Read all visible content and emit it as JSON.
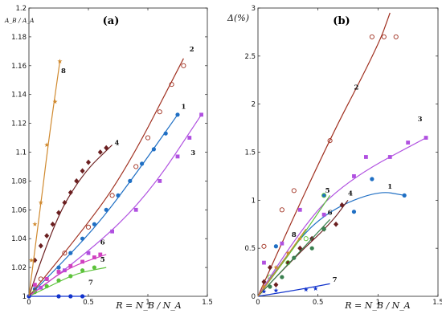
{
  "chart_data": [
    {
      "type": "line",
      "panel": "(a)",
      "ylabel": "A_B / A_A",
      "xlabel": "R = N_B / N_A",
      "xlim": [
        0,
        1.5
      ],
      "ylim": [
        1.0,
        1.2
      ],
      "x_ticks": [
        0,
        0.5,
        1,
        1.5
      ],
      "x_tick_labels": [
        "0",
        "0.5",
        "1",
        "1.5"
      ],
      "y_ticks": [
        1.0,
        1.02,
        1.04,
        1.06,
        1.08,
        1.1,
        1.12,
        1.14,
        1.16,
        1.18,
        1.2
      ],
      "y_tick_labels": [
        "1",
        "1.02",
        "1.04",
        "1.06",
        "1.08",
        "1.1",
        "1.12",
        "1.14",
        "1.16",
        "1.18",
        "1.2"
      ],
      "series": [
        {
          "name": "1",
          "color": "#1f6fc4",
          "marker": "dot",
          "points": [
            [
              0.05,
              1.005
            ],
            [
              0.15,
              1.012
            ],
            [
              0.25,
              1.02
            ],
            [
              0.35,
              1.03
            ],
            [
              0.45,
              1.04
            ],
            [
              0.55,
              1.05
            ],
            [
              0.65,
              1.06
            ],
            [
              0.75,
              1.07
            ],
            [
              0.85,
              1.08
            ],
            [
              0.95,
              1.092
            ],
            [
              1.05,
              1.102
            ],
            [
              1.15,
              1.113
            ],
            [
              1.25,
              1.126
            ]
          ],
          "curve": [
            [
              0,
              1.0
            ],
            [
              0.3,
              1.025
            ],
            [
              0.6,
              1.052
            ],
            [
              0.9,
              1.085
            ],
            [
              1.25,
              1.126
            ]
          ],
          "label_at": [
            1.28,
            1.13
          ]
        },
        {
          "name": "2",
          "color": "#a03020",
          "marker": "circle-open",
          "points": [
            [
              0.1,
              1.012
            ],
            [
              0.3,
              1.03
            ],
            [
              0.5,
              1.048
            ],
            [
              0.7,
              1.07
            ],
            [
              0.9,
              1.09
            ],
            [
              1.0,
              1.11
            ],
            [
              1.1,
              1.128
            ],
            [
              1.2,
              1.147
            ],
            [
              1.3,
              1.16
            ]
          ],
          "curve": [
            [
              0,
              1.0
            ],
            [
              0.4,
              1.04
            ],
            [
              0.8,
              1.085
            ],
            [
              1.3,
              1.165
            ]
          ],
          "label_at": [
            1.35,
            1.17
          ]
        },
        {
          "name": "3",
          "color": "#b050e0",
          "marker": "square",
          "points": [
            [
              0.1,
              1.006
            ],
            [
              0.3,
              1.018
            ],
            [
              0.5,
              1.03
            ],
            [
              0.7,
              1.045
            ],
            [
              0.9,
              1.06
            ],
            [
              1.1,
              1.08
            ],
            [
              1.25,
              1.097
            ],
            [
              1.35,
              1.11
            ],
            [
              1.45,
              1.126
            ]
          ],
          "curve": [
            [
              0,
              1.0
            ],
            [
              0.5,
              1.03
            ],
            [
              1.0,
              1.07
            ],
            [
              1.45,
              1.126
            ]
          ],
          "label_at": [
            1.36,
            1.098
          ]
        },
        {
          "name": "4",
          "color": "#6b1f20",
          "marker": "diamond",
          "points": [
            [
              0.05,
              1.025
            ],
            [
              0.1,
              1.035
            ],
            [
              0.15,
              1.042
            ],
            [
              0.2,
              1.05
            ],
            [
              0.25,
              1.058
            ],
            [
              0.3,
              1.065
            ],
            [
              0.35,
              1.072
            ],
            [
              0.4,
              1.08
            ],
            [
              0.45,
              1.087
            ],
            [
              0.5,
              1.093
            ],
            [
              0.6,
              1.1
            ],
            [
              0.65,
              1.103
            ]
          ],
          "curve": [
            [
              0,
              1.0
            ],
            [
              0.2,
              1.05
            ],
            [
              0.45,
              1.085
            ],
            [
              0.7,
              1.105
            ]
          ],
          "label_at": [
            0.72,
            1.105
          ]
        },
        {
          "name": "5",
          "color": "#5cc23a",
          "marker": "dot",
          "points": [
            [
              0.05,
              1.003
            ],
            [
              0.15,
              1.007
            ],
            [
              0.25,
              1.011
            ],
            [
              0.35,
              1.014
            ],
            [
              0.45,
              1.018
            ],
            [
              0.55,
              1.02
            ]
          ],
          "curve": [
            [
              0,
              1.0
            ],
            [
              0.2,
              1.008
            ],
            [
              0.4,
              1.016
            ],
            [
              0.65,
              1.02
            ]
          ],
          "label_at": [
            0.6,
            1.024
          ]
        },
        {
          "name": "6",
          "color": "#d040c0",
          "marker": "square",
          "points": [
            [
              0.05,
              1.008
            ],
            [
              0.15,
              1.012
            ],
            [
              0.25,
              1.017
            ],
            [
              0.35,
              1.021
            ],
            [
              0.45,
              1.024
            ],
            [
              0.55,
              1.027
            ],
            [
              0.6,
              1.029
            ]
          ],
          "curve": [
            [
              0,
              1.0
            ],
            [
              0.2,
              1.013
            ],
            [
              0.4,
              1.022
            ],
            [
              0.65,
              1.029
            ]
          ],
          "label_at": [
            0.6,
            1.036
          ]
        },
        {
          "name": "7",
          "color": "#1133cc",
          "marker": "dot",
          "points": [
            [
              0.0,
              1.0
            ],
            [
              0.25,
              1.0
            ],
            [
              0.35,
              1.0
            ],
            [
              0.45,
              1.0
            ]
          ],
          "curve": [
            [
              0,
              1.0
            ],
            [
              0.48,
              1.0
            ]
          ],
          "label_at": [
            0.5,
            1.008
          ]
        },
        {
          "name": "8",
          "color": "#d08a30",
          "marker": "star",
          "points": [
            [
              0.02,
              1.025
            ],
            [
              0.05,
              1.05
            ],
            [
              0.1,
              1.065
            ],
            [
              0.15,
              1.105
            ],
            [
              0.22,
              1.135
            ],
            [
              0.26,
              1.163
            ]
          ],
          "curve": [
            [
              0,
              1.0
            ],
            [
              0.08,
              1.05
            ],
            [
              0.16,
              1.105
            ],
            [
              0.26,
              1.163
            ]
          ],
          "label_at": [
            0.27,
            1.155
          ]
        }
      ]
    },
    {
      "type": "line",
      "panel": "(b)",
      "ylabel": "Δ(%)",
      "xlabel": "R = N_B / N_A",
      "xlim": [
        0,
        1.5
      ],
      "ylim": [
        0,
        3
      ],
      "x_ticks": [
        0,
        0.5,
        1,
        1.5
      ],
      "x_tick_labels": [
        "0",
        "0.5",
        "1",
        "1.5"
      ],
      "y_ticks": [
        0,
        0.5,
        1,
        1.5,
        2,
        2.5,
        3
      ],
      "y_tick_labels": [
        "0",
        "0.5",
        "1",
        "1.5",
        "2",
        "2.5",
        "3"
      ],
      "series": [
        {
          "name": "1",
          "color": "#1f6fc4",
          "marker": "dot",
          "points": [
            [
              0.15,
              0.52
            ],
            [
              0.45,
              0.6
            ],
            [
              0.55,
              1.05
            ],
            [
              0.8,
              0.88
            ],
            [
              0.95,
              1.22
            ],
            [
              1.22,
              1.05
            ]
          ],
          "curve": [
            [
              0,
              0
            ],
            [
              0.3,
              0.55
            ],
            [
              0.6,
              0.9
            ],
            [
              1.0,
              1.1
            ],
            [
              1.22,
              1.05
            ]
          ],
          "label_at": [
            1.08,
            1.12
          ]
        },
        {
          "name": "2",
          "color": "#a03020",
          "marker": "circle-open",
          "points": [
            [
              0.05,
              0.52
            ],
            [
              0.2,
              0.9
            ],
            [
              0.3,
              1.1
            ],
            [
              0.6,
              1.62
            ],
            [
              0.95,
              2.7
            ],
            [
              1.05,
              2.7
            ],
            [
              1.15,
              2.7
            ]
          ],
          "curve": [
            [
              0,
              0
            ],
            [
              0.5,
              1.4
            ],
            [
              1.0,
              2.6
            ],
            [
              1.1,
              2.95
            ]
          ],
          "label_at": [
            0.8,
            2.15
          ]
        },
        {
          "name": "3",
          "color": "#b050e0",
          "marker": "square",
          "points": [
            [
              0.05,
              0.35
            ],
            [
              0.2,
              0.55
            ],
            [
              0.35,
              0.9
            ],
            [
              0.55,
              0.85
            ],
            [
              0.8,
              1.25
            ],
            [
              0.9,
              1.45
            ],
            [
              1.1,
              1.45
            ],
            [
              1.25,
              1.6
            ],
            [
              1.4,
              1.65
            ]
          ],
          "curve": [
            [
              0,
              0
            ],
            [
              0.4,
              0.8
            ],
            [
              0.8,
              1.25
            ],
            [
              1.4,
              1.65
            ]
          ],
          "label_at": [
            1.33,
            1.82
          ]
        },
        {
          "name": "4",
          "color": "#6b1f20",
          "marker": "diamond",
          "points": [
            [
              0.05,
              0.15
            ],
            [
              0.1,
              0.3
            ],
            [
              0.15,
              0.12
            ],
            [
              0.25,
              0.35
            ],
            [
              0.35,
              0.5
            ],
            [
              0.45,
              0.6
            ],
            [
              0.55,
              0.7
            ],
            [
              0.65,
              0.75
            ],
            [
              0.7,
              0.95
            ]
          ],
          "curve": [
            [
              0,
              0
            ],
            [
              0.3,
              0.4
            ],
            [
              0.6,
              0.75
            ],
            [
              0.75,
              1.0
            ]
          ],
          "label_at": [
            0.75,
            1.05
          ]
        },
        {
          "name": "5",
          "color": "#5cc23a",
          "marker": "circle-open",
          "points": [
            [
              0.1,
              0.2
            ],
            [
              0.25,
              0.35
            ],
            [
              0.4,
              0.6
            ],
            [
              0.55,
              1.05
            ]
          ],
          "curve": [
            [
              0,
              0
            ],
            [
              0.3,
              0.5
            ],
            [
              0.6,
              1.05
            ]
          ],
          "label_at": [
            0.56,
            1.08
          ]
        },
        {
          "name": "6",
          "color": "#3a8050",
          "marker": "dot",
          "points": [
            [
              0.1,
              0.1
            ],
            [
              0.2,
              0.2
            ],
            [
              0.3,
              0.4
            ],
            [
              0.45,
              0.5
            ],
            [
              0.55,
              0.7
            ]
          ],
          "curve": [
            [
              0,
              0
            ],
            [
              0.3,
              0.4
            ],
            [
              0.6,
              0.8
            ]
          ],
          "label_at": [
            0.58,
            0.85
          ]
        },
        {
          "name": "7",
          "color": "#1133cc",
          "marker": "star",
          "points": [
            [
              0.05,
              0.05
            ],
            [
              0.15,
              0.06
            ],
            [
              0.4,
              0.07
            ],
            [
              0.48,
              0.08
            ]
          ],
          "curve": [
            [
              0,
              0
            ],
            [
              0.3,
              0.06
            ],
            [
              0.6,
              0.13
            ]
          ],
          "label_at": [
            0.62,
            0.15
          ]
        },
        {
          "name": "8",
          "color": "#d08a30",
          "marker": "star",
          "points": [
            [
              0.05,
              0.1
            ],
            [
              0.15,
              0.3
            ],
            [
              0.25,
              0.45
            ],
            [
              0.35,
              0.6
            ]
          ],
          "curve": [
            [
              0,
              0
            ],
            [
              0.2,
              0.35
            ],
            [
              0.4,
              0.7
            ]
          ],
          "label_at": [
            0.28,
            0.62
          ]
        }
      ]
    }
  ]
}
